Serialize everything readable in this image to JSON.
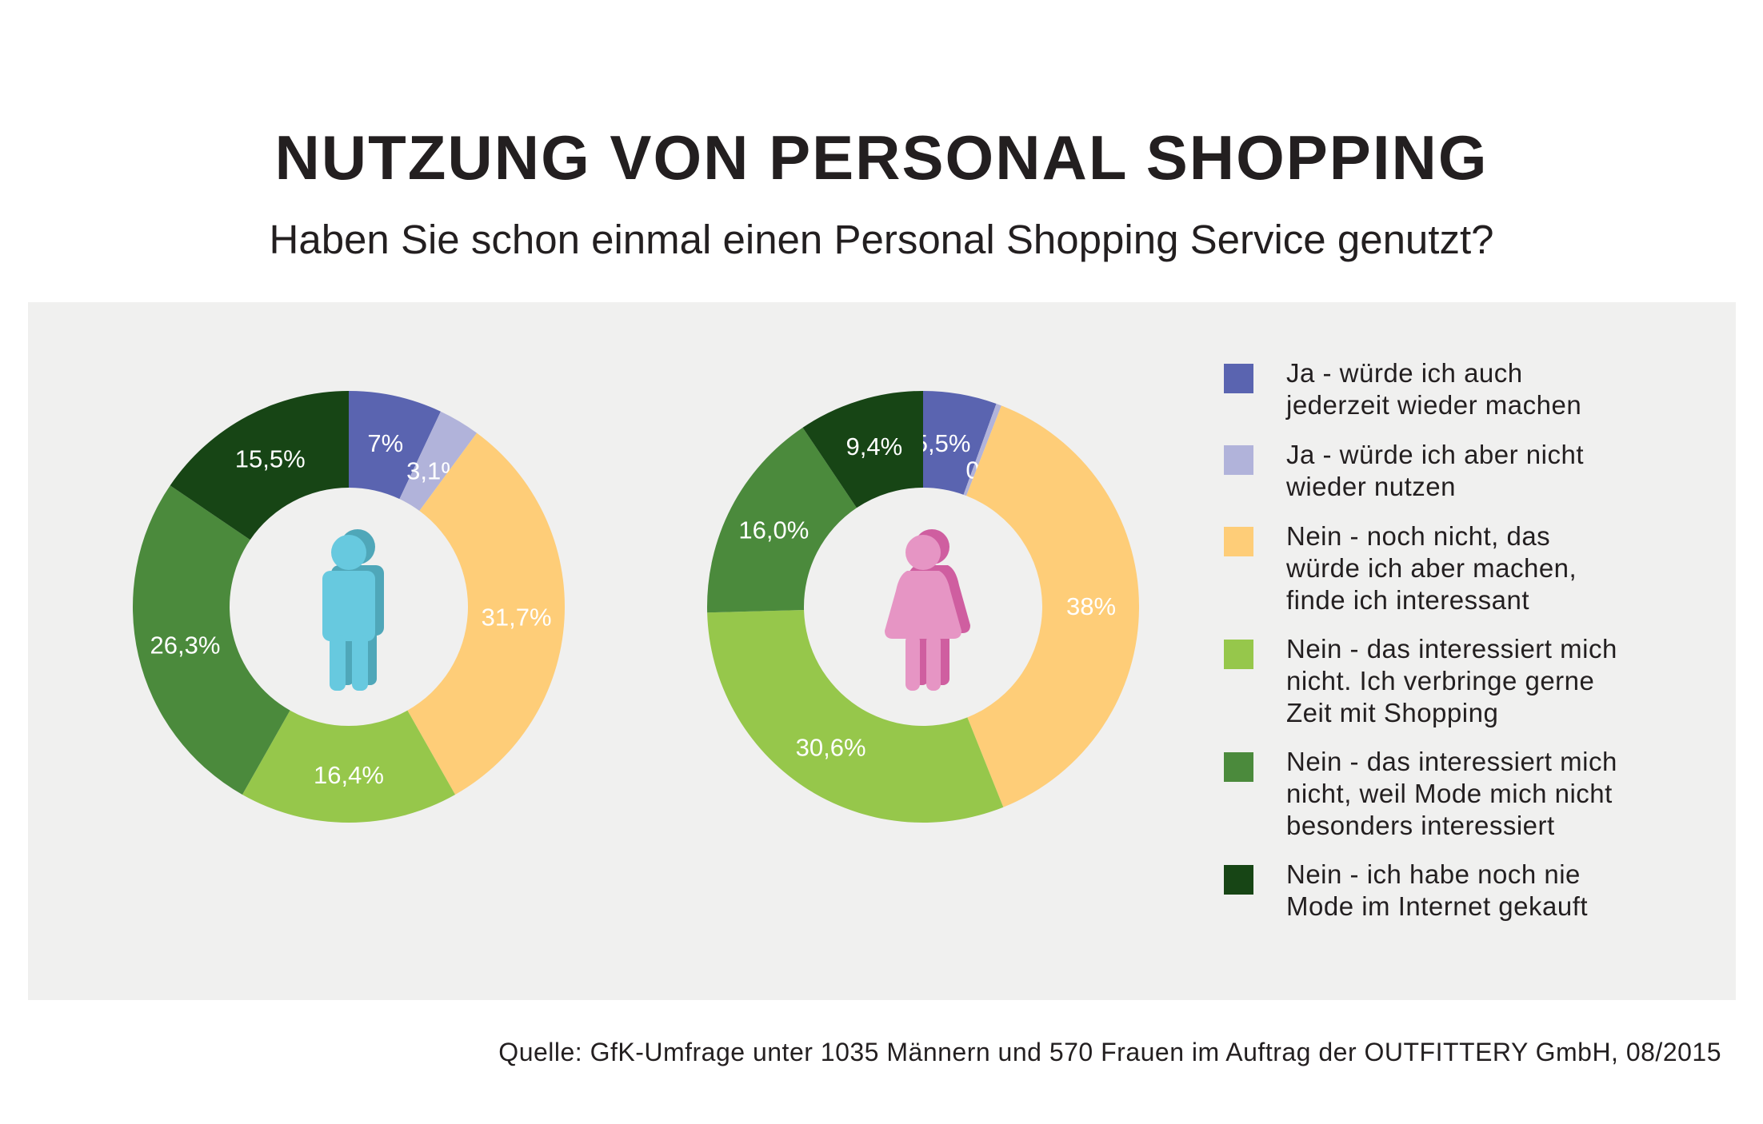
{
  "title": "NUTZUNG VON PERSONAL SHOPPING",
  "subtitle": "Haben Sie schon einmal einen Personal Shopping Service genutzt?",
  "source": "Quelle: GfK-Umfrage unter 1035 Männern und 570 Frauen im Auftrag der OUTFITTERY GmbH, 08/2015",
  "colors": {
    "panel_bg": "#f0f0ef",
    "male_figure": "#67c9df",
    "male_figure_shadow": "#4fa7b9",
    "female_figure": "#e695c4",
    "female_figure_shadow": "#cf5ea0"
  },
  "icons": [
    "male-figure-icon",
    "female-figure-icon"
  ],
  "legend": [
    {
      "label": "Ja - würde ich auch\njederzeit wieder machen",
      "color": "#5a64b0"
    },
    {
      "label": "Ja - würde ich aber nicht\nwieder nutzen",
      "color": "#b1b3da"
    },
    {
      "label": "Nein - noch nicht, das\nwürde ich aber machen,\nfinde ich interessant",
      "color": "#fecd78"
    },
    {
      "label": "Nein - das interessiert mich\nnicht. Ich verbringe gerne\nZeit mit Shopping",
      "color": "#96c74b"
    },
    {
      "label": "Nein - das interessiert mich\nnicht, weil Mode mich nicht\nbesonders interessiert",
      "color": "#4b8a3c"
    },
    {
      "label": "Nein - ich habe noch nie\nMode im Internet gekauft",
      "color": "#174515"
    }
  ],
  "chart_data": [
    {
      "type": "pie",
      "donut": true,
      "center_icon": "male-figure-icon",
      "categories": [
        "Ja - würde ich auch jederzeit wieder machen",
        "Ja - würde ich aber nicht wieder nutzen",
        "Nein - noch nicht, das würde ich aber machen, finde ich interessant",
        "Nein - das interessiert mich nicht. Ich verbringe gerne Zeit mit Shopping",
        "Nein - das interessiert mich nicht, weil Mode mich nicht besonders interessiert",
        "Nein - ich habe noch nie Mode im Internet gekauft"
      ],
      "values": [
        7,
        3.1,
        31.7,
        16.4,
        26.3,
        15.5
      ],
      "labels": [
        "7%",
        "3,1%",
        "31,7%",
        "16,4%",
        "26,3%",
        "15,5%"
      ],
      "colors": [
        "#5a64b0",
        "#b1b3da",
        "#fecd78",
        "#96c74b",
        "#4b8a3c",
        "#174515"
      ]
    },
    {
      "type": "pie",
      "donut": true,
      "center_icon": "female-figure-icon",
      "categories": [
        "Ja - würde ich auch jederzeit wieder machen",
        "Ja - würde ich aber nicht wieder nutzen",
        "Nein - noch nicht, das würde ich aber machen, finde ich interessant",
        "Nein - das interessiert mich nicht. Ich verbringe gerne Zeit mit Shopping",
        "Nein - das interessiert mich nicht, weil Mode mich nicht besonders interessiert",
        "Nein - ich habe noch nie Mode im Internet gekauft"
      ],
      "values": [
        5.5,
        0.4,
        38,
        30.6,
        16.0,
        9.4
      ],
      "labels": [
        "5,5%",
        "0,4%",
        "38%",
        "30,6%",
        "16,0%",
        "9,4%"
      ],
      "colors": [
        "#5a64b0",
        "#b1b3da",
        "#fecd78",
        "#96c74b",
        "#4b8a3c",
        "#174515"
      ]
    }
  ]
}
